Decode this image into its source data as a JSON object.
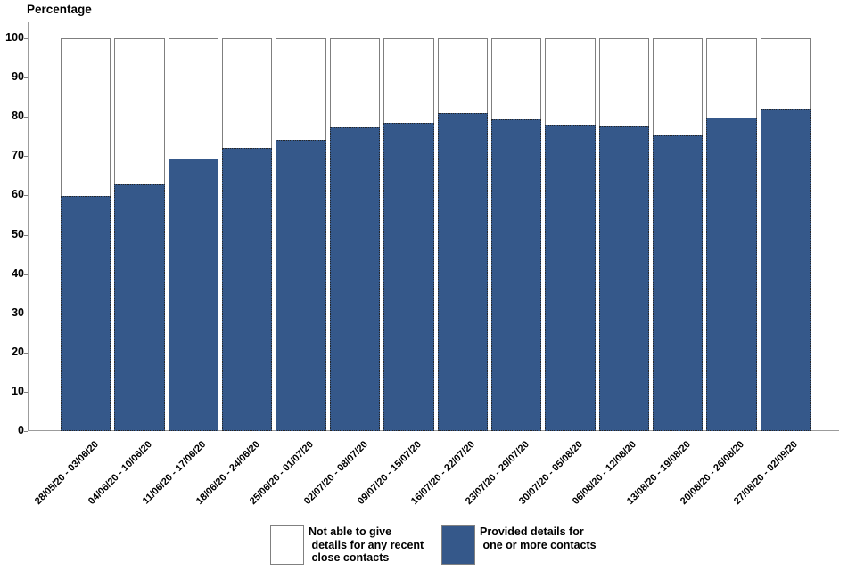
{
  "title": "Percentage",
  "chart_data": {
    "type": "bar",
    "stacked": true,
    "title": "Percentage",
    "xlabel": "",
    "ylabel": "Percentage",
    "ylim": [
      0,
      100
    ],
    "yticks": [
      0,
      10,
      20,
      30,
      40,
      50,
      60,
      70,
      80,
      90,
      100
    ],
    "grid": false,
    "legend_position": "bottom",
    "categories": [
      "28/05/20 - 03/06/20",
      "04/06/20 - 10/06/20",
      "11/06/20 - 17/06/20",
      "18/06/20 - 24/06/20",
      "25/06/20 - 01/07/20",
      "02/07/20 - 08/07/20",
      "09/07/20 - 15/07/20",
      "16/07/20 - 22/07/20",
      "23/07/20 - 29/07/20",
      "30/07/20 - 05/08/20",
      "06/08/20 - 12/08/20",
      "13/08/20 - 19/08/20",
      "20/08/20 - 26/08/20",
      "27/08/20 - 02/09/20"
    ],
    "series": [
      {
        "name": "Provided details for one or more contacts",
        "color": "#35588A",
        "values": [
          59.8,
          62.8,
          69.5,
          72.2,
          74.1,
          77.4,
          78.5,
          81.0,
          79.4,
          77.9,
          77.6,
          75.3,
          79.9,
          82.0
        ]
      },
      {
        "name": "Not able to give details for any recent close contacts",
        "color": "#FFFFFF",
        "values": [
          40.2,
          37.2,
          30.5,
          27.8,
          25.9,
          22.6,
          21.5,
          19.0,
          20.6,
          22.1,
          22.4,
          24.7,
          20.1,
          18.0
        ]
      }
    ]
  },
  "legend": {
    "items": [
      {
        "swatch_color": "#FFFFFF",
        "lines": [
          "Not able to give",
          " details for any recent",
          " close contacts"
        ]
      },
      {
        "swatch_color": "#35588A",
        "lines": [
          "Provided details for",
          " one or more contacts"
        ]
      }
    ]
  },
  "colors": {
    "bar_fill": "#35588A",
    "bar_outline": "#7F7F7F",
    "segment_outline": "#262626",
    "axis_line": "#9C9C9C",
    "text": "#000000"
  }
}
